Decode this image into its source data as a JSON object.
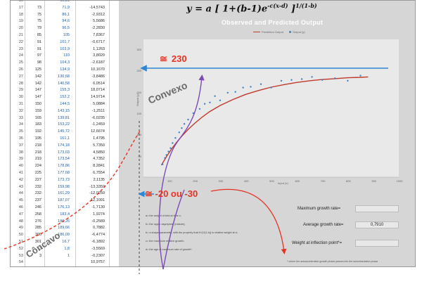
{
  "formula": {
    "lhs": "y = a",
    "body": "[ 1+(b-1)e",
    "exponent": "-c(x-d)",
    "close": " ]",
    "outer_exponent": "1/(1-b)"
  },
  "chart": {
    "title": "Observed and Predicted Output",
    "legend_predicted": "Prediction Output",
    "legend_observed": "Output (y)",
    "xlabel": "Input (x)",
    "ylabel": "Output (y)"
  },
  "chart_data": {
    "type": "scatter",
    "title": "Observed and Predicted Output",
    "xlabel": "Input (x)",
    "ylabel": "Output (y)",
    "xlim": [
      0,
      1000
    ],
    "ylim": [
      0,
      300
    ],
    "x_ticks": [
      "100",
      "200",
      "300",
      "400",
      "500",
      "600",
      "700",
      "800",
      "900",
      "1000"
    ],
    "y_ticks": [
      "300",
      "250",
      "200",
      "150",
      "100",
      "50"
    ],
    "grid": false,
    "legend": "top",
    "series": [
      {
        "name": "Output (y)",
        "kind": "scatter",
        "color": "#3b82c4",
        "x": [
          75,
          84,
          90,
          98,
          106,
          114,
          125,
          140,
          150,
          160,
          175,
          195,
          220,
          240,
          260,
          280,
          300,
          330,
          360,
          390,
          420,
          460,
          500,
          540,
          580,
          620,
          660,
          700,
          750,
          800,
          850
        ],
        "y": [
          30,
          45,
          52,
          60,
          68,
          80,
          92,
          105,
          115,
          125,
          135,
          150,
          160,
          172,
          175,
          190,
          180,
          198,
          200,
          210,
          212,
          218,
          210,
          226,
          228,
          230,
          235,
          228,
          232,
          226,
          238
        ]
      },
      {
        "name": "Prediction Output",
        "kind": "line",
        "color": "#c0392b",
        "x": [
          70,
          90,
          110,
          130,
          150,
          175,
          200,
          230,
          260,
          300,
          350,
          400,
          450,
          500,
          550,
          600,
          650,
          700,
          750,
          800,
          850,
          880
        ],
        "y": [
          28,
          48,
          66,
          82,
          96,
          112,
          126,
          141,
          154,
          168,
          182,
          194,
          203,
          211,
          217,
          222,
          226,
          229,
          231,
          233,
          234,
          235
        ]
      }
    ]
  },
  "annotations": {
    "approx_symbol": "≅",
    "asymptote_value": "230",
    "inflection_value": "-20 ou -30",
    "convex_label": "Convexo",
    "concave_label": "Côncavo"
  },
  "notes": {
    "line1": "a= the weight of bird at time x;",
    "line2": "b= the upper asymptote (mature);",
    "line3": "b= a shape parameter, with the property that b^(1/(1-b)) is relative weight at d;",
    "line4": "c= the maximum relative growth;",
    "line5": "d= the age at maximum rate of growth*."
  },
  "growth": {
    "max_label": "Maximum growth rate=",
    "max_value": "",
    "avg_label": "Average growth rate=",
    "avg_value": "0,7910",
    "inflection_label": "Weight at inflection point*=",
    "inflection_value": "",
    "footnote": "*  where the autoacceleration growth phase passes into the autoretardation phase"
  },
  "table": {
    "rows": [
      [
        "16",
        "",
        "65,51",
        ""
      ],
      [
        "17",
        "73",
        "71,9",
        "-14,5743"
      ],
      [
        "18",
        "75",
        "86,1",
        "-2,9312"
      ],
      [
        "19",
        "75",
        "94,6",
        "5,5686"
      ],
      [
        "20",
        "79",
        "96,5",
        "-2,2830"
      ],
      [
        "21",
        "85",
        "105",
        "7,8367"
      ],
      [
        "22",
        "91",
        "101,7",
        "-0,6717"
      ],
      [
        "23",
        "91",
        "103,9",
        "1,1263"
      ],
      [
        "24",
        "97",
        "110",
        "3,8020"
      ],
      [
        "25",
        "98",
        "104,3",
        "-2,6187"
      ],
      [
        "26",
        "125",
        "134,9",
        "10,1670"
      ],
      [
        "27",
        "142",
        "130,68",
        "-3,8486"
      ],
      [
        "28",
        "142",
        "140,58",
        "6,0514"
      ],
      [
        "29",
        "147",
        "155,3",
        "18,0714"
      ],
      [
        "30",
        "147",
        "152,2",
        "14,9714"
      ],
      [
        "31",
        "150",
        "144,5",
        "5,0884"
      ],
      [
        "32",
        "159",
        "143,15",
        "-1,2511"
      ],
      [
        "33",
        "165",
        "139,81",
        "-6,0235"
      ],
      [
        "34",
        "183",
        "153,22",
        "-1,2459"
      ],
      [
        "35",
        "192",
        "145,72",
        "12,6674"
      ],
      [
        "36",
        "195",
        "161,1",
        "1,4795"
      ],
      [
        "37",
        "218",
        "174,18",
        "5,7350"
      ],
      [
        "38",
        "218",
        "173,03",
        "4,5850"
      ],
      [
        "39",
        "219",
        "173,54",
        "4,7352"
      ],
      [
        "40",
        "224",
        "178,86",
        "8,2841"
      ],
      [
        "41",
        "225",
        "177,68",
        "6,7554"
      ],
      [
        "42",
        "227",
        "173,73",
        "2,1135"
      ],
      [
        "43",
        "232",
        "159,98",
        "-13,3359"
      ],
      [
        "44",
        "232",
        "161,29",
        "-12,0250"
      ],
      [
        "45",
        "237",
        "187,07",
        "12,1091"
      ],
      [
        "46",
        "246",
        "176,13",
        "-1,7130"
      ],
      [
        "47",
        "258",
        "183,4",
        "1,9274"
      ],
      [
        "48",
        "276",
        "186,26",
        "-0,2589"
      ],
      [
        "49",
        "285",
        "189,66",
        "0,7882"
      ],
      [
        "50",
        "300",
        "186,09",
        "-6,4774"
      ],
      [
        "51",
        "301",
        "16,7",
        "-6,1892"
      ],
      [
        "52",
        "3",
        "1,8",
        "-3,5569"
      ],
      [
        "53",
        "3",
        "1",
        "-0,2307"
      ],
      [
        "54",
        "",
        "",
        "10,9757"
      ]
    ]
  }
}
